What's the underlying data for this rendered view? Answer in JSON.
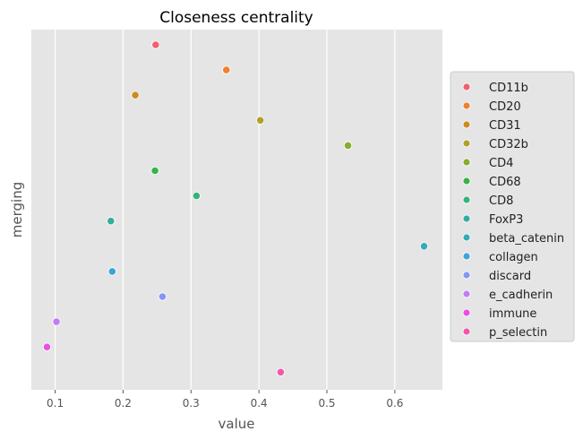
{
  "chart_data": {
    "type": "scatter",
    "title": "Closeness centrality",
    "xlabel": "value",
    "ylabel": "merging",
    "xlim": [
      0.065,
      0.67
    ],
    "xticks": [
      "0.1",
      "0.2",
      "0.3",
      "0.4",
      "0.5",
      "0.6"
    ],
    "xtick_values": [
      0.1,
      0.2,
      0.3,
      0.4,
      0.5,
      0.6
    ],
    "grid": true,
    "legend_position": "right",
    "points": [
      {
        "name": "CD11b",
        "value": 0.248,
        "color": "#f0606e"
      },
      {
        "name": "CD20",
        "value": 0.352,
        "color": "#f07f2e"
      },
      {
        "name": "CD31",
        "value": 0.218,
        "color": "#cc8b22"
      },
      {
        "name": "CD32b",
        "value": 0.402,
        "color": "#b1a12c"
      },
      {
        "name": "CD4",
        "value": 0.531,
        "color": "#85ad2e"
      },
      {
        "name": "CD68",
        "value": 0.247,
        "color": "#35b448"
      },
      {
        "name": "CD8",
        "value": 0.308,
        "color": "#36b27f"
      },
      {
        "name": "FoxP3",
        "value": 0.182,
        "color": "#35ad9e"
      },
      {
        "name": "beta_catenin",
        "value": 0.643,
        "color": "#37aab8"
      },
      {
        "name": "collagen",
        "value": 0.184,
        "color": "#3ca3db"
      },
      {
        "name": "discard",
        "value": 0.258,
        "color": "#8694f4"
      },
      {
        "name": "e_cadherin",
        "value": 0.102,
        "color": "#bf7ff3"
      },
      {
        "name": "immune",
        "value": 0.088,
        "color": "#ec4ee2"
      },
      {
        "name": "p_selectin",
        "value": 0.432,
        "color": "#f157ab"
      }
    ]
  }
}
